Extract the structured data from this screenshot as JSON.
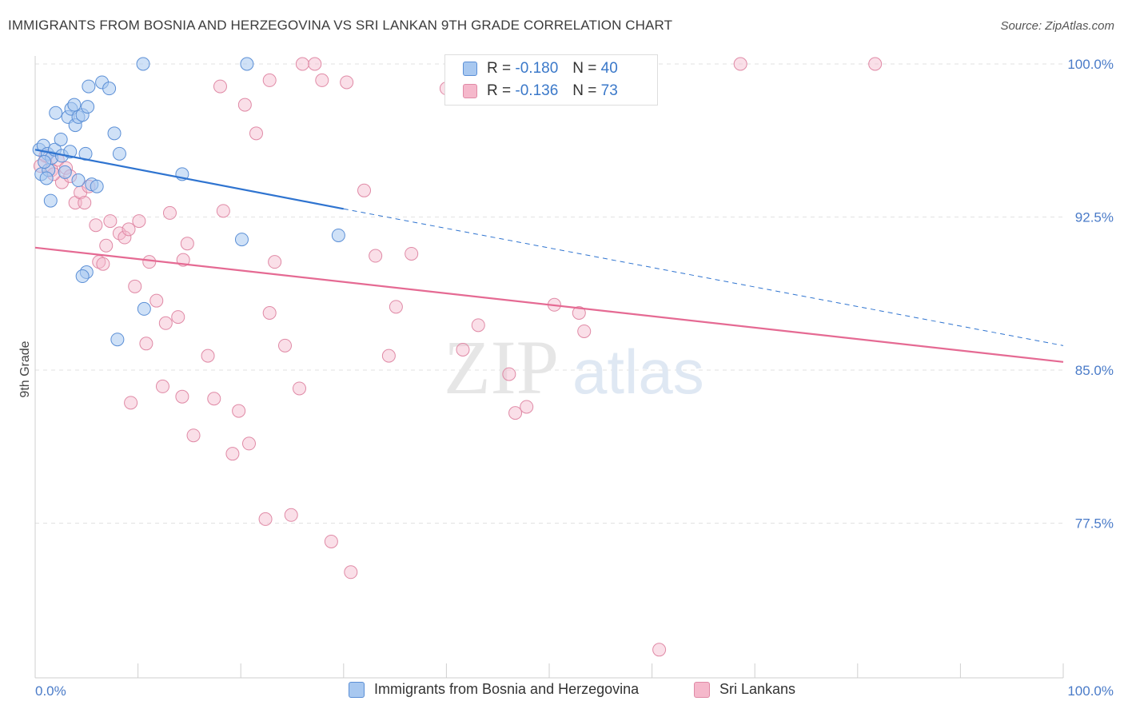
{
  "title": "IMMIGRANTS FROM BOSNIA AND HERZEGOVINA VS SRI LANKAN 9TH GRADE CORRELATION CHART",
  "source": "Source: ZipAtlas.com",
  "watermark": {
    "zip": "ZIP",
    "atlas": "atlas"
  },
  "legend": {
    "r_label": "R =",
    "n_label": "N =",
    "series1": {
      "r": "-0.180",
      "n": "40"
    },
    "series2": {
      "r": "-0.136",
      "n": "73"
    }
  },
  "bottom_legend": {
    "series1": "Immigrants from Bosnia and Herzegovina",
    "series2": "Sri Lankans"
  },
  "colors": {
    "series1_fill": "#a8c8f0",
    "series1_stroke": "#5b8fd6",
    "series1_line": "#2f74d0",
    "series2_fill": "#f5b8cb",
    "series2_stroke": "#e08aa6",
    "series2_line": "#e56a93"
  },
  "chart_data": {
    "type": "scatter",
    "title": "IMMIGRANTS FROM BOSNIA AND HERZEGOVINA VS SRI LANKAN 9TH GRADE CORRELATION CHART",
    "xlabel": "",
    "ylabel": "9th Grade",
    "xlim": [
      0,
      100
    ],
    "ylim": [
      70.0,
      100.3
    ],
    "x_tick_labels": [
      "0.0%",
      "100.0%"
    ],
    "y_ticks": [
      {
        "value": 100.0,
        "label": "100.0%"
      },
      {
        "value": 92.5,
        "label": "92.5%"
      },
      {
        "value": 85.0,
        "label": "85.0%"
      },
      {
        "value": 77.5,
        "label": "77.5%"
      }
    ],
    "series": [
      {
        "name": "Immigrants from Bosnia and Herzegovina",
        "R": -0.18,
        "N": 40,
        "trend": {
          "x_start": 0,
          "y_start": 95.8,
          "x_solid_end": 30,
          "y_solid_end": 92.9,
          "x_end": 100,
          "y_end": 86.2
        },
        "points": [
          [
            0.4,
            95.8
          ],
          [
            0.8,
            96.0
          ],
          [
            1.2,
            95.6
          ],
          [
            1.6,
            95.4
          ],
          [
            1.9,
            95.8
          ],
          [
            0.6,
            94.6
          ],
          [
            1.3,
            94.8
          ],
          [
            1.5,
            93.3
          ],
          [
            2.0,
            97.6
          ],
          [
            2.5,
            96.3
          ],
          [
            2.6,
            95.5
          ],
          [
            3.2,
            97.4
          ],
          [
            3.5,
            97.8
          ],
          [
            3.8,
            98.0
          ],
          [
            3.4,
            95.7
          ],
          [
            3.9,
            97.0
          ],
          [
            4.2,
            97.4
          ],
          [
            4.6,
            97.5
          ],
          [
            4.2,
            94.3
          ],
          [
            4.9,
            95.6
          ],
          [
            5.1,
            97.9
          ],
          [
            5.2,
            98.9
          ],
          [
            5.5,
            94.1
          ],
          [
            5.0,
            89.8
          ],
          [
            6.5,
            99.1
          ],
          [
            6.0,
            94.0
          ],
          [
            4.6,
            89.6
          ],
          [
            7.2,
            98.8
          ],
          [
            7.7,
            96.6
          ],
          [
            8.2,
            95.6
          ],
          [
            8.0,
            86.5
          ],
          [
            10.6,
            88.0
          ],
          [
            10.5,
            100.0
          ],
          [
            14.3,
            94.6
          ],
          [
            20.1,
            91.4
          ],
          [
            20.6,
            100.0
          ],
          [
            29.5,
            91.6
          ],
          [
            1.1,
            94.4
          ],
          [
            2.9,
            94.7
          ],
          [
            0.9,
            95.2
          ]
        ]
      },
      {
        "name": "Sri Lankans",
        "R": -0.136,
        "N": 73,
        "trend": {
          "x_start": 0,
          "y_start": 91.0,
          "x_end": 100,
          "y_end": 85.4
        },
        "points": [
          [
            0.5,
            95.0
          ],
          [
            1.0,
            95.5
          ],
          [
            1.6,
            94.8
          ],
          [
            2.2,
            95.3
          ],
          [
            2.6,
            94.2
          ],
          [
            3.0,
            94.9
          ],
          [
            3.4,
            94.5
          ],
          [
            1.8,
            94.6
          ],
          [
            3.9,
            93.2
          ],
          [
            4.4,
            93.7
          ],
          [
            4.8,
            93.2
          ],
          [
            5.2,
            94.0
          ],
          [
            5.9,
            92.1
          ],
          [
            6.2,
            90.3
          ],
          [
            6.6,
            90.2
          ],
          [
            6.9,
            91.1
          ],
          [
            7.3,
            92.3
          ],
          [
            8.2,
            91.7
          ],
          [
            8.7,
            91.5
          ],
          [
            9.1,
            91.9
          ],
          [
            9.7,
            89.1
          ],
          [
            10.1,
            92.3
          ],
          [
            10.8,
            86.3
          ],
          [
            11.1,
            90.3
          ],
          [
            11.8,
            88.4
          ],
          [
            12.7,
            87.3
          ],
          [
            13.1,
            92.7
          ],
          [
            13.9,
            87.6
          ],
          [
            14.4,
            90.4
          ],
          [
            14.8,
            91.2
          ],
          [
            15.4,
            81.8
          ],
          [
            16.8,
            85.7
          ],
          [
            17.4,
            83.6
          ],
          [
            18.3,
            92.8
          ],
          [
            19.2,
            80.9
          ],
          [
            19.8,
            83.0
          ],
          [
            20.4,
            98.0
          ],
          [
            20.8,
            81.4
          ],
          [
            21.5,
            96.6
          ],
          [
            22.4,
            77.7
          ],
          [
            22.8,
            87.8
          ],
          [
            23.3,
            90.3
          ],
          [
            24.3,
            86.2
          ],
          [
            24.9,
            77.9
          ],
          [
            25.7,
            84.1
          ],
          [
            26.0,
            100.0
          ],
          [
            27.2,
            100.0
          ],
          [
            27.9,
            99.2
          ],
          [
            28.8,
            76.6
          ],
          [
            30.3,
            99.1
          ],
          [
            30.7,
            75.1
          ],
          [
            32.0,
            93.8
          ],
          [
            33.1,
            90.6
          ],
          [
            34.4,
            85.7
          ],
          [
            35.1,
            88.1
          ],
          [
            36.6,
            90.7
          ],
          [
            40.0,
            98.8
          ],
          [
            41.6,
            86.0
          ],
          [
            43.1,
            87.2
          ],
          [
            46.1,
            84.8
          ],
          [
            46.7,
            82.9
          ],
          [
            47.8,
            83.2
          ],
          [
            50.5,
            88.2
          ],
          [
            52.9,
            87.8
          ],
          [
            53.4,
            86.9
          ],
          [
            60.7,
            71.3
          ],
          [
            68.6,
            100.0
          ],
          [
            81.7,
            100.0
          ],
          [
            22.8,
            99.2
          ],
          [
            18.0,
            98.9
          ],
          [
            14.3,
            83.7
          ],
          [
            12.4,
            84.2
          ],
          [
            9.3,
            83.4
          ]
        ]
      }
    ]
  }
}
